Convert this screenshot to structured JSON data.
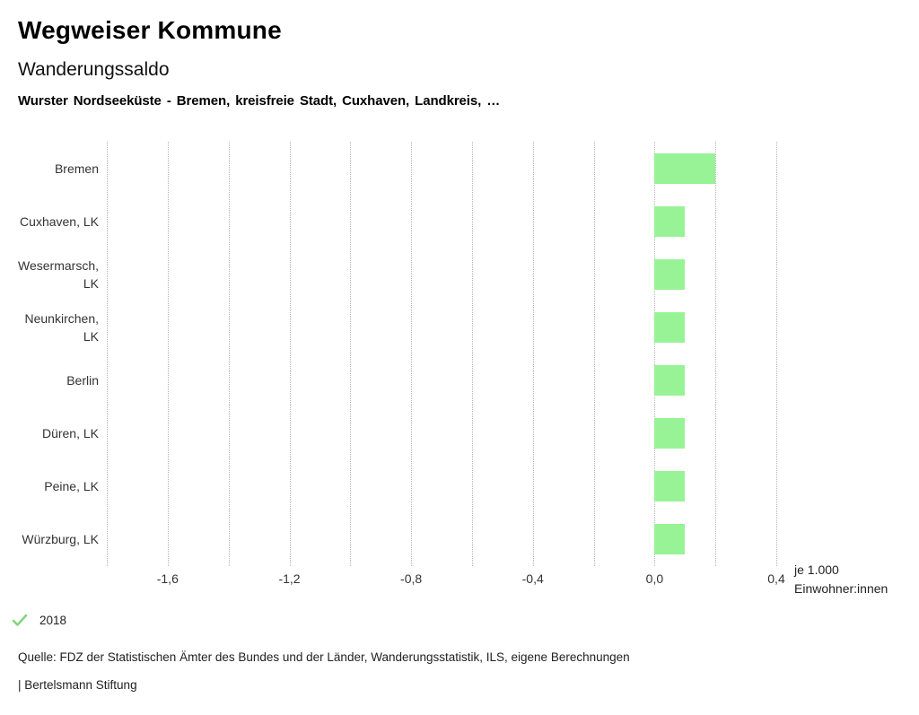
{
  "header": {
    "title": "Wegweiser Kommune",
    "subtitle": "Wanderungssaldo",
    "selection": "Wurster Nordseeküste - Bremen, kreisfreie Stadt, Cuxhaven, Landkreis, …"
  },
  "chart_data": {
    "type": "bar",
    "orientation": "horizontal",
    "title": "Wanderungssaldo",
    "categories": [
      "Bremen",
      "Cuxhaven, LK",
      "Wesermarsch, LK",
      "Neunkirchen, LK",
      "Berlin",
      "Düren, LK",
      "Peine, LK",
      "Würzburg, LK"
    ],
    "category_label_lines": [
      [
        "Bremen"
      ],
      [
        "Cuxhaven, LK"
      ],
      [
        "Wesermarsch,",
        "LK"
      ],
      [
        "Neunkirchen,",
        "LK"
      ],
      [
        "Berlin"
      ],
      [
        "Düren, LK"
      ],
      [
        "Peine, LK"
      ],
      [
        "Würzburg, LK"
      ]
    ],
    "series": [
      {
        "name": "2018",
        "values": [
          0.2,
          0.1,
          0.1,
          0.1,
          0.1,
          0.1,
          0.1,
          0.1
        ]
      }
    ],
    "xlabel": "je 1.000 Einwohner:innen",
    "xlim": [
      -1.8,
      0.4
    ],
    "grid_step": 0.2,
    "grid": true,
    "x_ticks": [
      {
        "value": -1.6,
        "label": "-1,6"
      },
      {
        "value": -1.2,
        "label": "-1,2"
      },
      {
        "value": -0.8,
        "label": "-0,8"
      },
      {
        "value": -0.4,
        "label": "-0,4"
      },
      {
        "value": 0.0,
        "label": "0,0"
      },
      {
        "value": 0.4,
        "label": "0,4"
      }
    ],
    "bar_color": "#98f396",
    "gridline_color": "#b3b3b3",
    "legend_position": "bottom"
  },
  "axis_caption": {
    "line1": "je 1.000",
    "line2": "Einwohner:innen"
  },
  "legend": {
    "year_label": "2018",
    "check_color": "#7ed87e"
  },
  "footer": {
    "source": "Quelle: FDZ der Statistischen Ämter des Bundes und der Länder, Wanderungsstatistik, ILS, eigene Berechnungen",
    "attribution": "| Bertelsmann Stiftung"
  }
}
